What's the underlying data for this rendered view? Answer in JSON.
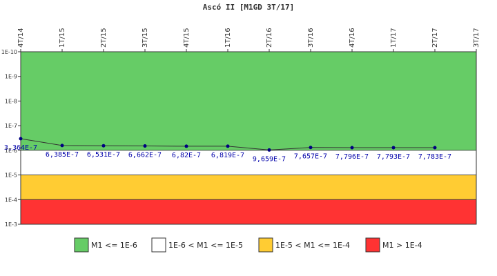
{
  "chart_data": {
    "type": "line",
    "title": "Ascó II [M1GD 3T/17]",
    "categories": [
      "4T/14",
      "1T/15",
      "2T/15",
      "3T/15",
      "4T/15",
      "1T/16",
      "2T/16",
      "3T/16",
      "4T/16",
      "1T/17",
      "2T/17",
      "3T/17"
    ],
    "series": [
      {
        "name": "M1GD",
        "color": "#333333",
        "marker_color": "#000080",
        "values": [
          3.364e-07,
          6.385e-07,
          6.531e-07,
          6.662e-07,
          6.82e-07,
          6.819e-07,
          9.659e-07,
          7.657e-07,
          7.796e-07,
          7.793e-07,
          7.783e-07,
          null
        ],
        "value_labels": [
          "3,364E-7",
          "6,385E-7",
          "6,531E-7",
          "6,662E-7",
          "6,82E-7",
          "6,819E-7",
          "9,659E-7",
          "7,657E-7",
          "7,796E-7",
          "7,793E-7",
          "7,783E-7",
          null
        ]
      }
    ],
    "ylim": [
      1e-10,
      0.001
    ],
    "y_log": true,
    "y_inverted": true,
    "yticks": [
      {
        "value": 1e-10,
        "label": "1E-10"
      },
      {
        "value": 1e-09,
        "label": "1E-9"
      },
      {
        "value": 1e-08,
        "label": "1E-8"
      },
      {
        "value": 1e-07,
        "label": "1E-7"
      },
      {
        "value": 1e-06,
        "label": "1E-6"
      },
      {
        "value": 1e-05,
        "label": "1E-5"
      },
      {
        "value": 0.0001,
        "label": "1E-4"
      },
      {
        "value": 0.001,
        "label": "1E-3"
      }
    ],
    "bands": [
      {
        "name": "M1 <= 1E-6",
        "color": "#66cc66",
        "from": 1e-10,
        "to": 1e-06
      },
      {
        "name": "1E-6 < M1 <= 1E-5",
        "color": "#ffffff",
        "from": 1e-06,
        "to": 1e-05
      },
      {
        "name": "1E-5 < M1 <= 1E-4",
        "color": "#ffcc33",
        "from": 1e-05,
        "to": 0.0001
      },
      {
        "name": "M1 > 1E-4",
        "color": "#ff3333",
        "from": 0.0001,
        "to": 0.001
      }
    ]
  }
}
